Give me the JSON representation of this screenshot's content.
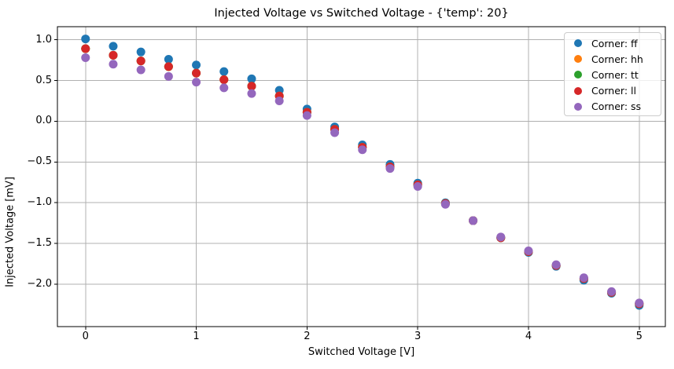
{
  "chart_data": {
    "type": "scatter",
    "title": "Injected Voltage vs Switched Voltage - {'temp': 20}",
    "xlabel": "Switched Voltage [V]",
    "ylabel": "Injected Voltage [mV]",
    "grid": true,
    "legend_position": "upper right",
    "xlim": [
      -0.254,
      5.236
    ],
    "ylim": [
      -2.52,
      1.16
    ],
    "xticks": [
      0,
      1,
      2,
      3,
      4,
      5
    ],
    "xtick_labels": [
      "0",
      "1",
      "2",
      "3",
      "4",
      "5"
    ],
    "yticks": [
      1.0,
      0.5,
      0.0,
      -0.5,
      -1.0,
      -1.5,
      -2.0
    ],
    "ytick_labels": [
      "1.0",
      "0.5",
      "0.0",
      "−0.5",
      "−1.0",
      "−1.5",
      "−2.0"
    ],
    "x": [
      0,
      0.25,
      0.5,
      0.75,
      1.0,
      1.25,
      1.5,
      1.75,
      2.0,
      2.25,
      2.5,
      2.75,
      3.0,
      3.25,
      3.5,
      3.75,
      4.0,
      4.25,
      4.5,
      4.75,
      5.0
    ],
    "series": [
      {
        "name": "Corner: ff",
        "corner": "ff",
        "color": "#1f77b4",
        "values": [
          1.01,
          0.92,
          0.85,
          0.76,
          0.69,
          0.61,
          0.52,
          0.38,
          0.15,
          -0.07,
          -0.29,
          -0.53,
          -0.76,
          -1.0,
          -1.22,
          -1.43,
          -1.61,
          -1.78,
          -1.95,
          -2.11,
          -2.26
        ]
      },
      {
        "name": "Corner: hh",
        "corner": "hh",
        "color": "#ff7f0e",
        "values": [
          0.89,
          0.81,
          0.74,
          0.67,
          0.59,
          0.51,
          0.43,
          0.31,
          0.11,
          -0.1,
          -0.32,
          -0.56,
          -0.78,
          -1.01,
          -1.22,
          -1.43,
          -1.6,
          -1.77,
          -1.93,
          -2.1,
          -2.24
        ]
      },
      {
        "name": "Corner: tt",
        "corner": "tt",
        "color": "#2ca02c",
        "values": [
          0.89,
          0.81,
          0.74,
          0.67,
          0.59,
          0.51,
          0.43,
          0.31,
          0.11,
          -0.1,
          -0.32,
          -0.56,
          -0.78,
          -1.01,
          -1.22,
          -1.43,
          -1.6,
          -1.77,
          -1.93,
          -2.1,
          -2.24
        ]
      },
      {
        "name": "Corner: ll",
        "corner": "ll",
        "color": "#d62728",
        "values": [
          0.89,
          0.81,
          0.74,
          0.67,
          0.59,
          0.51,
          0.43,
          0.31,
          0.11,
          -0.1,
          -0.32,
          -0.56,
          -0.78,
          -1.01,
          -1.22,
          -1.43,
          -1.6,
          -1.77,
          -1.93,
          -2.1,
          -2.24
        ]
      },
      {
        "name": "Corner: ss",
        "corner": "ss",
        "color": "#9467bd",
        "values": [
          0.78,
          0.7,
          0.63,
          0.55,
          0.48,
          0.41,
          0.34,
          0.25,
          0.07,
          -0.14,
          -0.35,
          -0.58,
          -0.8,
          -1.02,
          -1.22,
          -1.42,
          -1.59,
          -1.76,
          -1.92,
          -2.09,
          -2.23
        ]
      }
    ],
    "style": {
      "grid_color": "#b0b0b0",
      "spine_color": "#000000",
      "marker_radius_px": 5.5
    }
  }
}
